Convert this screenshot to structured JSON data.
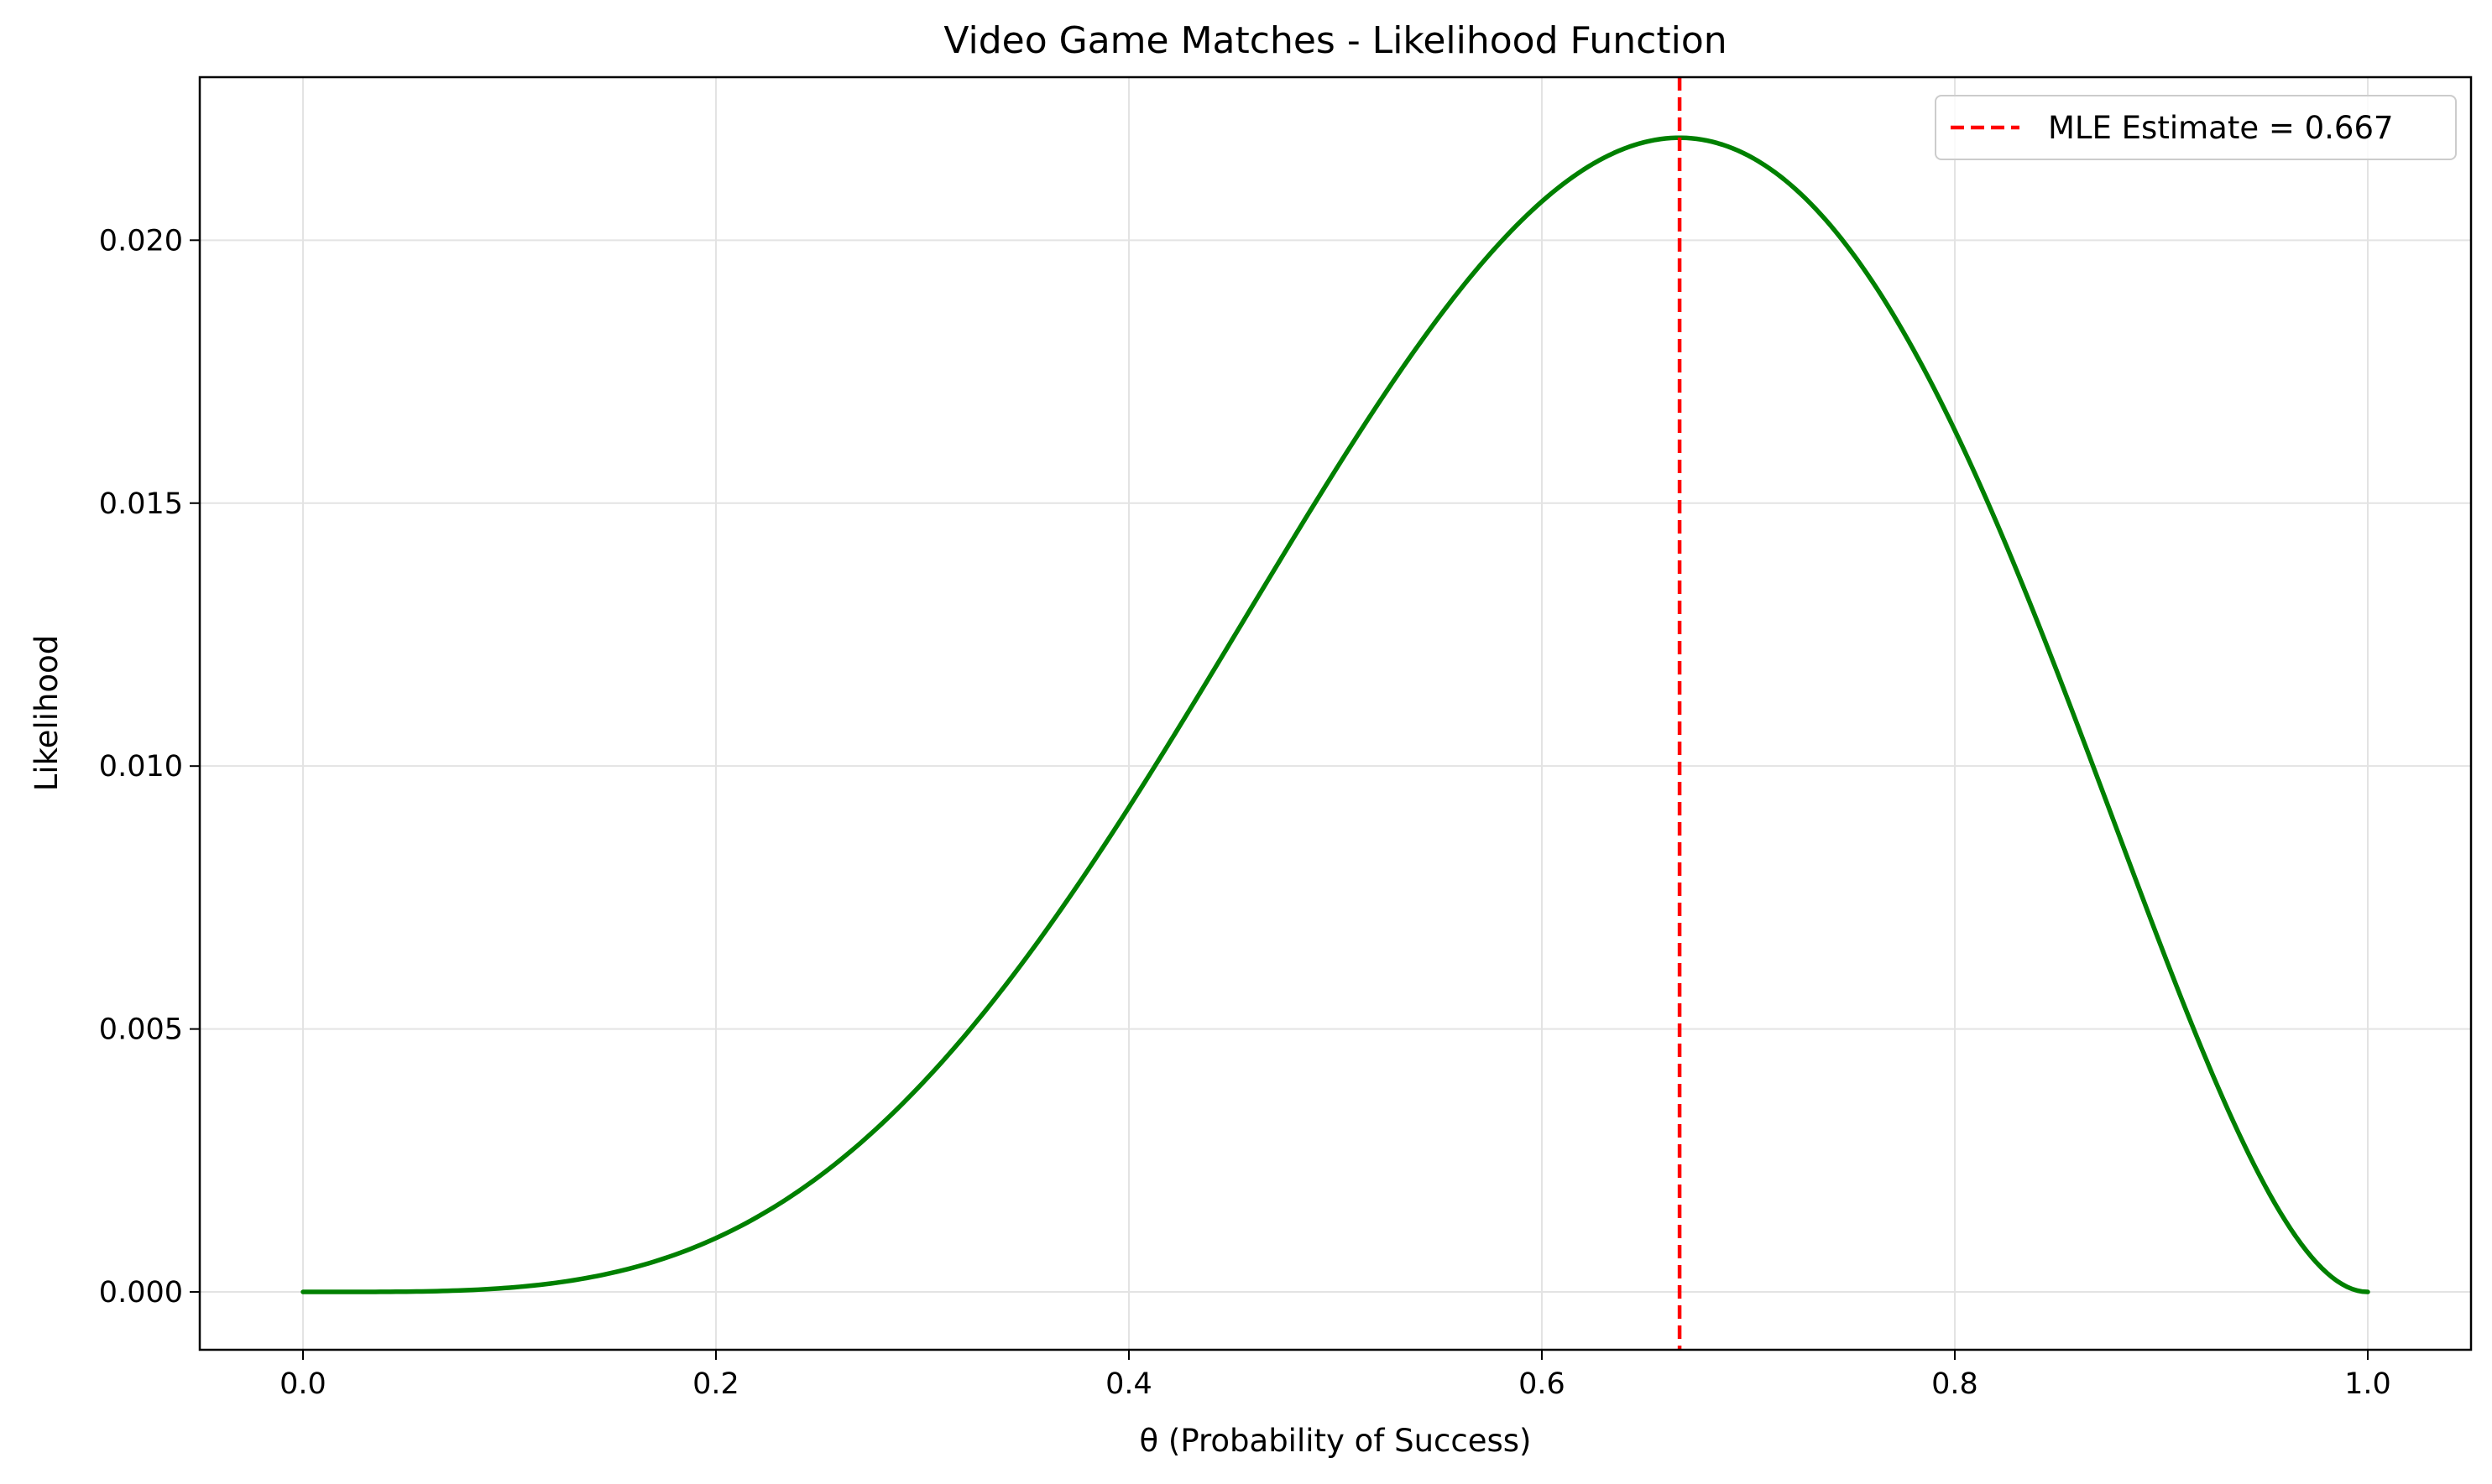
{
  "chart_data": {
    "type": "line",
    "title": "Video Game Matches - Likelihood Function",
    "xlabel": "θ (Probability of Success)",
    "ylabel": "Likelihood",
    "xlim": [
      -0.05,
      1.05
    ],
    "ylim": [
      -0.0011,
      0.0231
    ],
    "xticks": [
      0.0,
      0.2,
      0.4,
      0.6,
      0.8,
      1.0
    ],
    "xtick_labels": [
      "0.0",
      "0.2",
      "0.4",
      "0.6",
      "0.8",
      "1.0"
    ],
    "yticks": [
      0.0,
      0.005,
      0.01,
      0.015,
      0.02
    ],
    "ytick_labels": [
      "0.000",
      "0.005",
      "0.010",
      "0.015",
      "0.020"
    ],
    "grid": true,
    "legend_position": "top-right",
    "series": [
      {
        "name": "Likelihood",
        "color": "#008000",
        "model": "theta^4 * (1 - theta)^2",
        "x_range": [
          0.0,
          1.0
        ],
        "samples": 400
      }
    ],
    "vlines": [
      {
        "name": "MLE Estimate = 0.667",
        "x": 0.6667,
        "color": "#ff0000",
        "style": "dashed"
      }
    ]
  }
}
